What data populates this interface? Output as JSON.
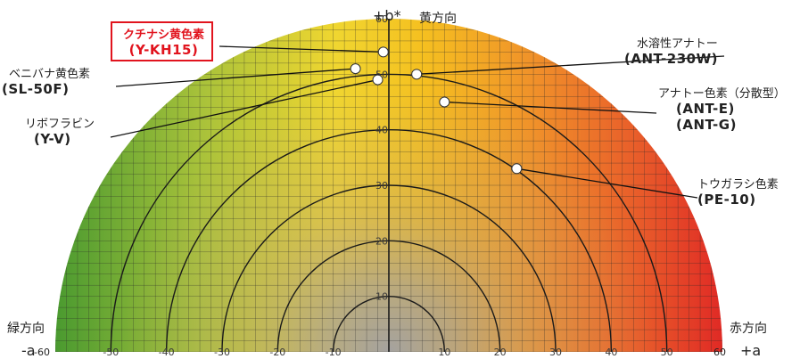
{
  "chart_data": {
    "type": "scatter",
    "title": "",
    "x_axis": {
      "neg_label": "-a",
      "pos_label": "+a",
      "neg_direction": "緑方向",
      "pos_direction": "赤方向",
      "range": [
        -60,
        60
      ],
      "ticks": [
        -60,
        -50,
        -40,
        -30,
        -20,
        -10,
        0,
        10,
        20,
        30,
        40,
        50,
        60
      ]
    },
    "y_axis": {
      "label": "+b*",
      "direction": "黄方向",
      "range": [
        0,
        60
      ],
      "ticks": [
        10,
        20,
        30,
        40,
        50,
        60
      ]
    },
    "rings": [
      10,
      20,
      30,
      40,
      50
    ],
    "grid": true,
    "points": [
      {
        "name": "クチナシ黄色素",
        "code": "(Y-KH15)",
        "a": -1,
        "b": 54,
        "highlight": true
      },
      {
        "name": "ベニバナ黄色素",
        "code": "(SL-50F)",
        "a": -6,
        "b": 51,
        "highlight": false
      },
      {
        "name": "リボフラビン",
        "code": "(Y-V)",
        "a": -2,
        "b": 49,
        "highlight": false
      },
      {
        "name": "水溶性アナトー",
        "code": "(ANT-230W)",
        "a": 5,
        "b": 50,
        "highlight": false
      },
      {
        "name": "アナトー色素（分散型）",
        "code": "(ANT-E)",
        "code2": "(ANT-G)",
        "a": 10,
        "b": 45,
        "highlight": false
      },
      {
        "name": "トウガラシ色素",
        "code": "(PE-10)",
        "a": 23,
        "b": 33,
        "highlight": false
      }
    ]
  }
}
